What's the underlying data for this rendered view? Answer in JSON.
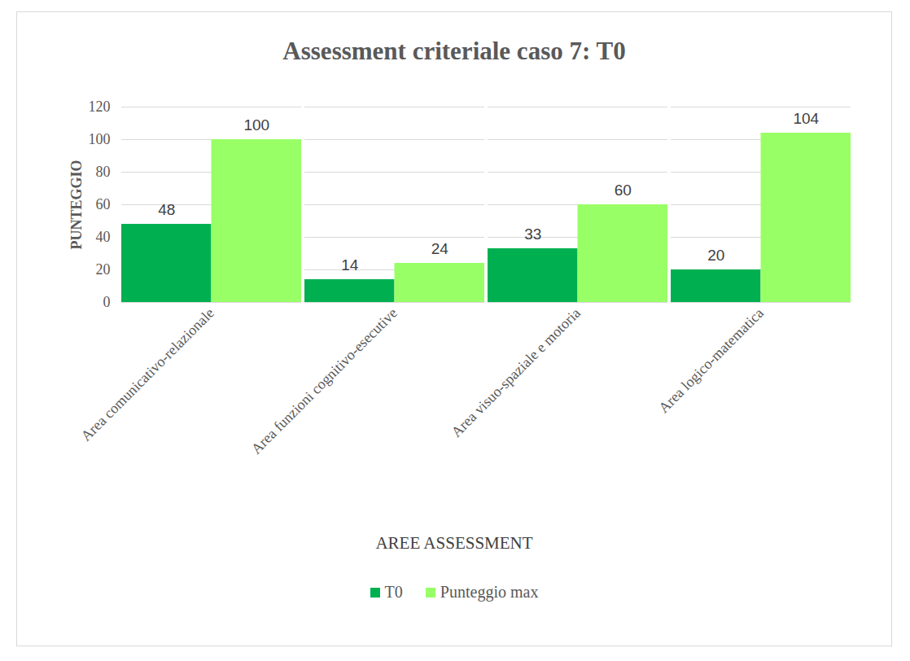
{
  "chart_data": {
    "type": "bar",
    "title": "Assessment criteriale caso 7: T0",
    "x_label": "AREE ASSESSMENT",
    "y_label": "PUNTEGGIO",
    "categories": [
      "Area comunicativo-relazionale",
      "Area funzioni cognitivo-esecutive",
      "Area visuo-spaziale e motoria",
      "Area logico-matematica"
    ],
    "series": [
      {
        "name": "T0",
        "color": "#00b050",
        "values": [
          48,
          14,
          33,
          20
        ]
      },
      {
        "name": "Punteggio max",
        "color": "#99ff66",
        "values": [
          100,
          24,
          60,
          104
        ]
      }
    ],
    "ylim": [
      0,
      120
    ],
    "yticks": [
      0,
      20,
      40,
      60,
      80,
      100,
      120
    ],
    "grid": true,
    "data_labels": true,
    "legend": "bottom"
  }
}
